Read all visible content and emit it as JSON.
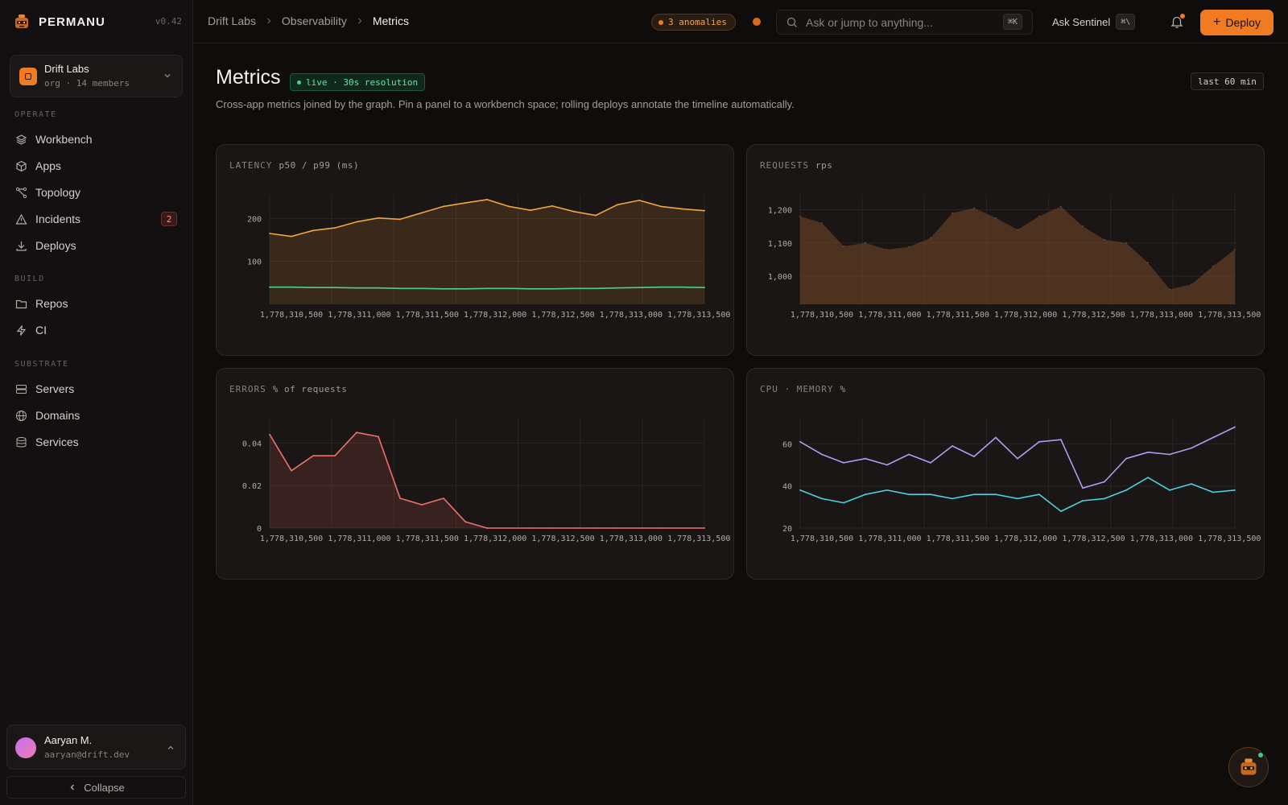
{
  "app": {
    "name": "PERMANU",
    "version": "v0.42"
  },
  "org": {
    "name": "Drift Labs",
    "meta": "org · 14 members"
  },
  "nav": {
    "sections": [
      {
        "label": "OPERATE",
        "items": [
          {
            "label": "Workbench",
            "icon": "layers-icon"
          },
          {
            "label": "Apps",
            "icon": "cube-icon"
          },
          {
            "label": "Topology",
            "icon": "topology-icon"
          },
          {
            "label": "Incidents",
            "icon": "warning-icon",
            "badge": "2"
          },
          {
            "label": "Deploys",
            "icon": "download-icon"
          }
        ]
      },
      {
        "label": "BUILD",
        "items": [
          {
            "label": "Repos",
            "icon": "folder-icon"
          },
          {
            "label": "CI",
            "icon": "bolt-icon"
          }
        ]
      },
      {
        "label": "SUBSTRATE",
        "items": [
          {
            "label": "Servers",
            "icon": "server-icon"
          },
          {
            "label": "Domains",
            "icon": "globe-icon"
          },
          {
            "label": "Services",
            "icon": "database-icon"
          }
        ]
      }
    ]
  },
  "user": {
    "name": "Aaryan M.",
    "email": "aaryan@drift.dev"
  },
  "sidebar": {
    "collapse_label": "Collapse"
  },
  "topbar": {
    "breadcrumbs": [
      "Drift Labs",
      "Observability",
      "Metrics"
    ],
    "anomalies": "3 anomalies",
    "search_placeholder": "Ask or jump to anything...",
    "search_kbd": "⌘K",
    "ask_label": "Ask Sentinel",
    "ask_kbd": "⌘\\",
    "deploy_label": "Deploy"
  },
  "page": {
    "title": "Metrics",
    "live_label": "live · 30s resolution",
    "description": "Cross-app metrics joined by the graph. Pin a panel to a workbench space; rolling deploys annotate the timeline automatically.",
    "range_label": "last 60 min"
  },
  "colors": {
    "accent": "#f07b22",
    "p50": "#4fd08a",
    "p99": "#f5a340",
    "requests": "#7a4a2a",
    "errors": "#f0706a",
    "cpu": "#b49af0",
    "memory": "#4fd0e0"
  },
  "chart_data": [
    {
      "type": "line",
      "title": "LATENCY",
      "unit": "p50 / p99 (ms)",
      "x_ticks": [
        "1,778,310,500",
        "1,778,311,000",
        "1,778,311,500",
        "1,778,312,000",
        "1,778,312,500",
        "1,778,313,000",
        "1,778,313,500"
      ],
      "y_ticks": [
        100,
        200
      ],
      "xlim": [
        1778310340,
        1778313540
      ],
      "ylim": [
        0,
        255
      ],
      "x": [
        1778310340,
        1778310500,
        1778310660,
        1778310820,
        1778310980,
        1778311140,
        1778311300,
        1778311460,
        1778311620,
        1778311780,
        1778311940,
        1778312100,
        1778312260,
        1778312420,
        1778312580,
        1778312740,
        1778312900,
        1778313060,
        1778313220,
        1778313380,
        1778313540
      ],
      "series": [
        {
          "values": [
            165,
            158,
            172,
            178,
            192,
            201,
            198,
            213,
            228,
            236,
            244,
            228,
            219,
            229,
            216,
            207,
            232,
            242,
            228,
            222,
            218
          ]
        },
        {
          "values": [
            40,
            40,
            39,
            39,
            38,
            38,
            37,
            37,
            36,
            36,
            37,
            37,
            36,
            36,
            37,
            37,
            38,
            39,
            40,
            40,
            39
          ]
        }
      ]
    },
    {
      "type": "area",
      "title": "REQUESTS",
      "unit": "rps",
      "x_ticks": [
        "1,778,310,500",
        "1,778,311,000",
        "1,778,311,500",
        "1,778,312,000",
        "1,778,312,500",
        "1,778,313,000",
        "1,778,313,500"
      ],
      "y_ticks": [
        1000,
        1100,
        1200
      ],
      "xlim": [
        1778310340,
        1778313540
      ],
      "ylim": [
        915,
        1245
      ],
      "x": [
        1778310340,
        1778310500,
        1778310660,
        1778310820,
        1778310980,
        1778311140,
        1778311300,
        1778311460,
        1778311620,
        1778311780,
        1778311940,
        1778312100,
        1778312260,
        1778312420,
        1778312580,
        1778312740,
        1778312900,
        1778313060,
        1778313220,
        1778313380,
        1778313540
      ],
      "series": [
        {
          "values": [
            1180,
            1160,
            1090,
            1100,
            1080,
            1088,
            1115,
            1190,
            1205,
            1175,
            1140,
            1180,
            1210,
            1150,
            1110,
            1100,
            1040,
            960,
            975,
            1030,
            1080
          ]
        }
      ]
    },
    {
      "type": "area",
      "title": "ERRORS",
      "unit": "% of requests",
      "x_ticks": [
        "1,778,310,500",
        "1,778,311,000",
        "1,778,311,500",
        "1,778,312,000",
        "1,778,312,500",
        "1,778,313,000",
        "1,778,313,500"
      ],
      "y_ticks": [
        0,
        0.02,
        0.04
      ],
      "xlim": [
        1778310340,
        1778313540
      ],
      "ylim": [
        0,
        0.0515
      ],
      "x": [
        1778310340,
        1778310500,
        1778310660,
        1778310820,
        1778310980,
        1778311140,
        1778311300,
        1778311460,
        1778311620,
        1778311780,
        1778311940,
        1778312100,
        1778312260,
        1778312420,
        1778312580,
        1778312740,
        1778312900,
        1778313060,
        1778313220,
        1778313380,
        1778313540
      ],
      "series": [
        {
          "values": [
            0.044,
            0.027,
            0.034,
            0.034,
            0.045,
            0.043,
            0.014,
            0.011,
            0.014,
            0.003,
            0.0,
            0.0,
            0.0,
            0.0,
            0.0,
            0.0,
            0.0,
            0.0,
            0.0,
            0.0,
            0.0
          ]
        }
      ]
    },
    {
      "type": "line",
      "title": "CPU · MEMORY",
      "unit": "%",
      "x_ticks": [
        "1,778,310,500",
        "1,778,311,000",
        "1,778,311,500",
        "1,778,312,000",
        "1,778,312,500",
        "1,778,313,000",
        "1,778,313,500"
      ],
      "y_ticks": [
        20,
        40,
        60
      ],
      "xlim": [
        1778310340,
        1778313540
      ],
      "ylim": [
        20,
        72
      ],
      "x": [
        1778310340,
        1778310500,
        1778310660,
        1778310820,
        1778310980,
        1778311140,
        1778311300,
        1778311460,
        1778311620,
        1778311780,
        1778311940,
        1778312100,
        1778312260,
        1778312420,
        1778312580,
        1778312740,
        1778312900,
        1778313060,
        1778313220,
        1778313380,
        1778313540
      ],
      "series": [
        {
          "values": [
            61,
            55,
            51,
            53,
            50,
            55,
            51,
            59,
            54,
            63,
            53,
            61,
            62,
            39,
            42,
            53,
            56,
            55,
            58,
            63,
            68
          ]
        },
        {
          "values": [
            38,
            34,
            32,
            36,
            38,
            36,
            36,
            34,
            36,
            36,
            34,
            36,
            28,
            33,
            34,
            38,
            44,
            38,
            41,
            37,
            38
          ]
        }
      ]
    }
  ]
}
